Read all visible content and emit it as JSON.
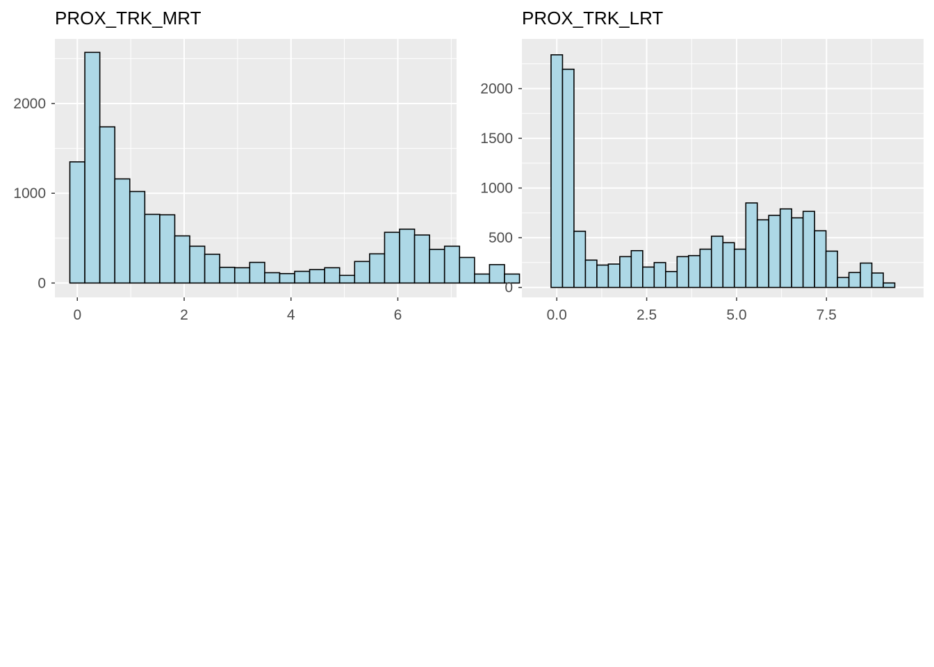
{
  "chart_data": [
    {
      "type": "bar",
      "title": "PROX_TRK_MRT",
      "xlabel": "",
      "ylabel": "",
      "bin_width": 0.2806,
      "bin_start": -0.1403,
      "values": [
        1350,
        2570,
        1740,
        1160,
        1020,
        765,
        760,
        525,
        410,
        320,
        175,
        170,
        230,
        115,
        105,
        130,
        150,
        170,
        85,
        240,
        325,
        565,
        600,
        535,
        375,
        410,
        285,
        100,
        205,
        100
      ],
      "xlim": [
        -0.42,
        7.1
      ],
      "ylim": [
        -160,
        2720
      ],
      "x_ticks": [
        0,
        2,
        4,
        6
      ],
      "x_tick_labels": [
        "0",
        "2",
        "4",
        "6"
      ],
      "y_ticks": [
        0,
        1000,
        2000
      ],
      "y_tick_labels": [
        "0",
        "1000",
        "2000"
      ],
      "grid": true,
      "fill_color": "#add8e6",
      "edge_color": "#000000",
      "panel_color": "#ebebeb"
    },
    {
      "type": "bar",
      "title": "PROX_TRK_LRT",
      "xlabel": "",
      "ylabel": "",
      "bin_width": 0.3186,
      "bin_start": -0.1593,
      "values": [
        2340,
        2195,
        565,
        275,
        225,
        235,
        310,
        370,
        205,
        250,
        160,
        310,
        320,
        385,
        515,
        450,
        385,
        850,
        680,
        725,
        790,
        700,
        765,
        570,
        365,
        100,
        150,
        245,
        145,
        45
      ],
      "xlim": [
        -0.97,
        10.2
      ],
      "ylim": [
        -100,
        2500
      ],
      "x_ticks": [
        0,
        2.5,
        5,
        7.5
      ],
      "x_tick_labels": [
        "0.0",
        "2.5",
        "5.0",
        "7.5"
      ],
      "y_ticks": [
        0,
        500,
        1000,
        1500,
        2000
      ],
      "y_tick_labels": [
        "0",
        "500",
        "1000",
        "1500",
        "2000"
      ],
      "grid": true,
      "fill_color": "#add8e6",
      "edge_color": "#000000",
      "panel_color": "#ebebeb"
    }
  ]
}
